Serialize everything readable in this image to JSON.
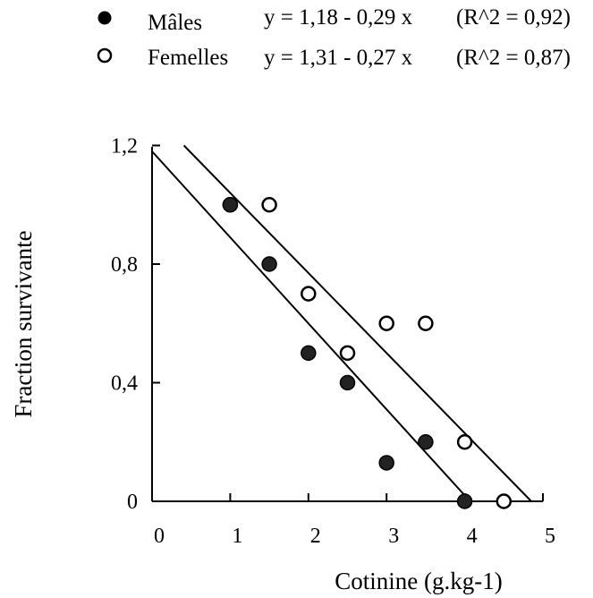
{
  "legend": {
    "males": {
      "label": "Mâles",
      "equation": "y = 1,18 - 0,29 x",
      "r2": "(R^2 = 0,92)"
    },
    "females": {
      "label": "Femelles",
      "equation": "y = 1,31 - 0,27 x",
      "r2": "(R^2 = 0,87)"
    }
  },
  "chart_data": {
    "type": "scatter",
    "xlabel": "Cotinine (g.kg-1)",
    "ylabel": "Fraction survivante",
    "xlim": [
      0,
      5
    ],
    "ylim": [
      0,
      1.2
    ],
    "x_ticks": [
      {
        "value": 0,
        "label": "0"
      },
      {
        "value": 1,
        "label": "1"
      },
      {
        "value": 2,
        "label": "2"
      },
      {
        "value": 3,
        "label": "3"
      },
      {
        "value": 4,
        "label": "4"
      },
      {
        "value": 5,
        "label": "5"
      }
    ],
    "y_ticks": [
      {
        "value": 0,
        "label": "0"
      },
      {
        "value": 0.4,
        "label": "0,4"
      },
      {
        "value": 0.8,
        "label": "0,8"
      },
      {
        "value": 1.2,
        "label": "1,2"
      }
    ],
    "series": [
      {
        "name": "Mâles",
        "marker": "filled-circle",
        "color": "#000000",
        "points": [
          {
            "x": 1.0,
            "y": 1.0
          },
          {
            "x": 1.5,
            "y": 0.8
          },
          {
            "x": 2.0,
            "y": 0.5
          },
          {
            "x": 2.5,
            "y": 0.4
          },
          {
            "x": 3.0,
            "y": 0.13
          },
          {
            "x": 3.5,
            "y": 0.2
          },
          {
            "x": 4.0,
            "y": 0.0
          }
        ],
        "fit": {
          "intercept": 1.18,
          "slope": -0.29
        }
      },
      {
        "name": "Femelles",
        "marker": "open-circle",
        "color": "#000000",
        "points": [
          {
            "x": 1.0,
            "y": 1.0
          },
          {
            "x": 1.5,
            "y": 1.0
          },
          {
            "x": 2.0,
            "y": 0.7
          },
          {
            "x": 2.5,
            "y": 0.5
          },
          {
            "x": 3.0,
            "y": 0.6
          },
          {
            "x": 3.5,
            "y": 0.6
          },
          {
            "x": 4.0,
            "y": 0.2
          },
          {
            "x": 4.5,
            "y": 0.0
          }
        ],
        "fit": {
          "intercept": 1.31,
          "slope": -0.27
        }
      }
    ]
  }
}
